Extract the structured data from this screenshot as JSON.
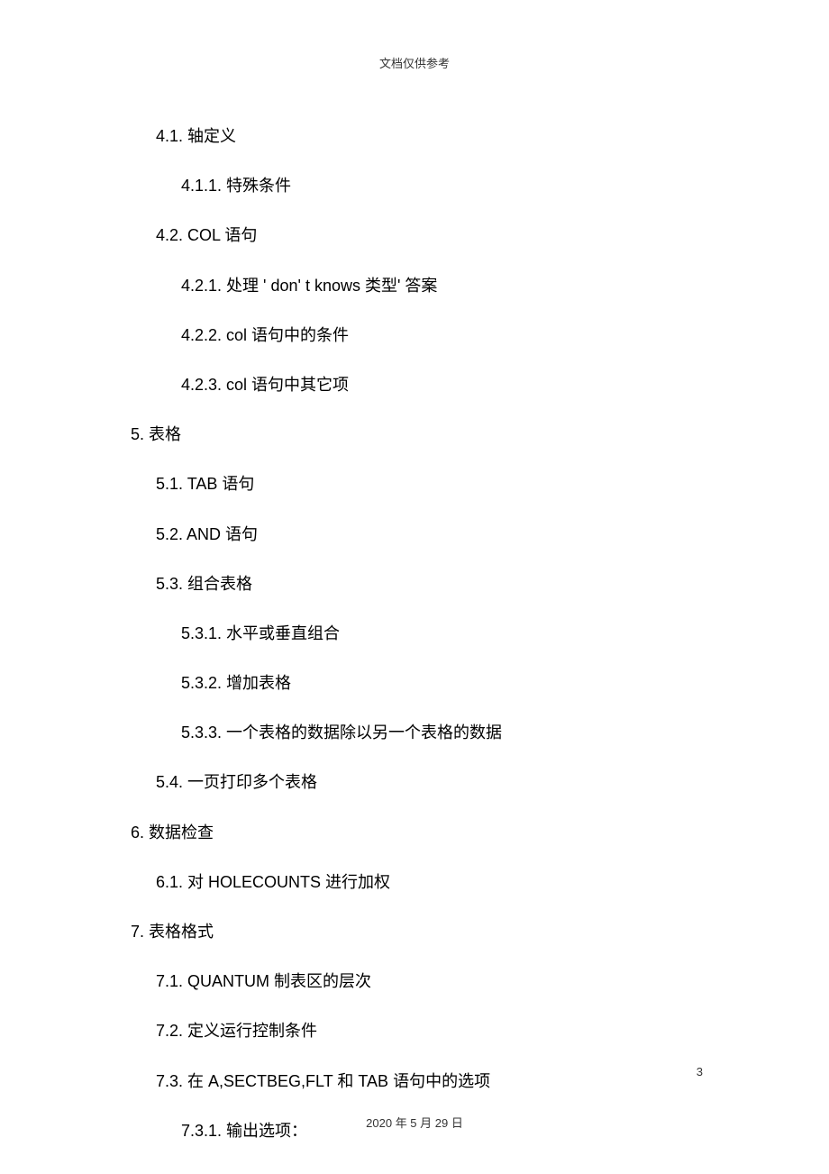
{
  "header": {
    "text": "文档仅供参考"
  },
  "toc": {
    "items": [
      {
        "level": 2,
        "text": "4.1. 轴定义"
      },
      {
        "level": 3,
        "text": "4.1.1. 特殊条件"
      },
      {
        "level": 2,
        "text": "4.2. COL 语句"
      },
      {
        "level": 3,
        "text": "4.2.1. 处理 ' don' t knows 类型' 答案"
      },
      {
        "level": 3,
        "text": "4.2.2. col 语句中的条件"
      },
      {
        "level": 3,
        "text": "4.2.3. col 语句中其它项"
      },
      {
        "level": 1,
        "text": "5. 表格"
      },
      {
        "level": 2,
        "text": "5.1. TAB 语句"
      },
      {
        "level": 2,
        "text": "5.2. AND 语句"
      },
      {
        "level": 2,
        "text": "5.3. 组合表格"
      },
      {
        "level": 3,
        "text": "5.3.1. 水平或垂直组合"
      },
      {
        "level": 3,
        "text": "5.3.2. 增加表格"
      },
      {
        "level": 3,
        "text": "5.3.3. 一个表格的数据除以另一个表格的数据"
      },
      {
        "level": 2,
        "text": "5.4. 一页打印多个表格"
      },
      {
        "level": 1,
        "text": "6. 数据检查"
      },
      {
        "level": 2,
        "text": "6.1. 对 HOLECOUNTS  进行加权"
      },
      {
        "level": 1,
        "text": "7. 表格格式"
      },
      {
        "level": 2,
        "text": "7.1. QUANTUM   制表区的层次"
      },
      {
        "level": 2,
        "text": "7.2. 定义运行控制条件"
      },
      {
        "level": 2,
        "text": "7.3. 在 A,SECTBEG,FLT  和 TAB 语句中的选项"
      },
      {
        "level": 3,
        "text": "7.3.1. 输出选项："
      }
    ]
  },
  "page_number": "3",
  "footer": {
    "date": "2020 年 5 月 29 日"
  },
  "colors": {
    "background": "#ffffff",
    "text": "#000000",
    "header_text": "#333333",
    "footer_text": "#333333"
  },
  "typography": {
    "body_fontsize": 18,
    "header_fontsize": 13,
    "footer_fontsize": 13
  }
}
